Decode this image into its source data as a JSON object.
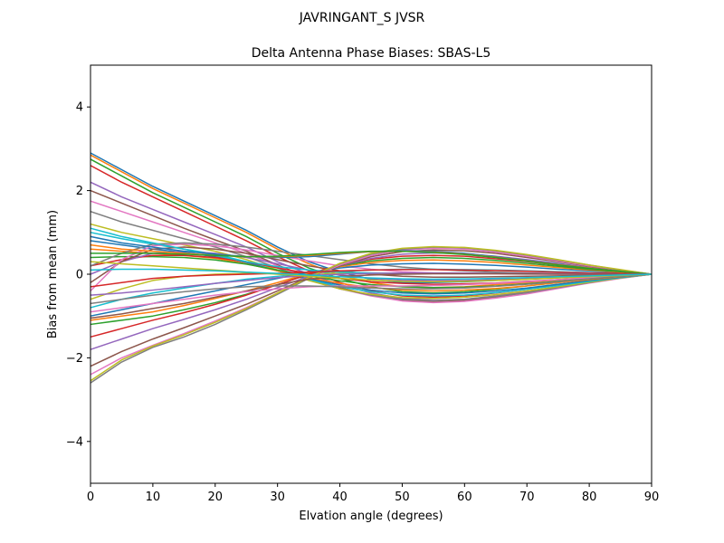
{
  "figure": {
    "suptitle": "JAVRINGANT_S    JVSR"
  },
  "chart_data": {
    "type": "line",
    "title": "Delta Antenna Phase Biases: SBAS-L5",
    "xlabel": "Elvation angle (degrees)",
    "ylabel": "Bias from mean (mm)",
    "xlim": [
      0,
      90
    ],
    "ylim": [
      -5,
      5
    ],
    "xticks": [
      0,
      10,
      20,
      30,
      40,
      50,
      60,
      70,
      80,
      90
    ],
    "yticks": [
      -4,
      -2,
      0,
      2,
      4
    ],
    "xtick_labels": [
      "0",
      "10",
      "20",
      "30",
      "40",
      "50",
      "60",
      "70",
      "80",
      "90"
    ],
    "ytick_labels": [
      "−4",
      "−2",
      "0",
      "2",
      "4"
    ],
    "grid": false,
    "legend": false,
    "x": [
      0,
      5,
      10,
      15,
      20,
      25,
      30,
      35,
      40,
      45,
      50,
      55,
      60,
      65,
      70,
      75,
      80,
      85,
      90
    ],
    "series": [
      {
        "values": [
          2.9,
          2.5,
          2.1,
          1.75,
          1.4,
          1.05,
          0.65,
          0.3,
          0.05,
          -0.12,
          -0.2,
          -0.2,
          -0.18,
          -0.15,
          -0.12,
          -0.08,
          -0.05,
          -0.02,
          0.0
        ]
      },
      {
        "values": [
          2.85,
          2.45,
          2.05,
          1.7,
          1.35,
          1.0,
          0.6,
          0.25,
          -0.02,
          -0.2,
          -0.3,
          -0.32,
          -0.3,
          -0.25,
          -0.2,
          -0.14,
          -0.08,
          -0.03,
          0.0
        ]
      },
      {
        "values": [
          2.75,
          2.35,
          1.95,
          1.6,
          1.25,
          0.9,
          0.5,
          0.15,
          -0.1,
          -0.3,
          -0.42,
          -0.45,
          -0.42,
          -0.36,
          -0.28,
          -0.2,
          -0.12,
          -0.05,
          0.0
        ]
      },
      {
        "values": [
          2.6,
          2.2,
          1.85,
          1.5,
          1.15,
          0.8,
          0.42,
          0.08,
          -0.2,
          -0.4,
          -0.52,
          -0.55,
          -0.52,
          -0.45,
          -0.36,
          -0.26,
          -0.16,
          -0.07,
          0.0
        ]
      },
      {
        "values": [
          2.2,
          1.85,
          1.55,
          1.25,
          0.95,
          0.65,
          0.3,
          0.0,
          -0.25,
          -0.45,
          -0.58,
          -0.62,
          -0.6,
          -0.52,
          -0.42,
          -0.3,
          -0.18,
          -0.08,
          0.0
        ]
      },
      {
        "values": [
          2.0,
          1.7,
          1.4,
          1.1,
          0.82,
          0.55,
          0.22,
          -0.08,
          -0.32,
          -0.5,
          -0.62,
          -0.66,
          -0.63,
          -0.55,
          -0.45,
          -0.32,
          -0.2,
          -0.09,
          0.0
        ]
      },
      {
        "values": [
          1.75,
          1.5,
          1.25,
          1.0,
          0.75,
          0.5,
          0.2,
          -0.1,
          -0.35,
          -0.52,
          -0.64,
          -0.68,
          -0.65,
          -0.57,
          -0.47,
          -0.34,
          -0.21,
          -0.1,
          0.0
        ]
      },
      {
        "values": [
          1.5,
          1.25,
          1.05,
          0.85,
          0.65,
          0.42,
          0.15,
          -0.12,
          -0.35,
          -0.5,
          -0.6,
          -0.63,
          -0.6,
          -0.53,
          -0.44,
          -0.32,
          -0.2,
          -0.09,
          0.0
        ]
      },
      {
        "values": [
          1.2,
          1.0,
          0.85,
          0.7,
          0.55,
          0.35,
          0.1,
          -0.15,
          -0.35,
          -0.48,
          -0.56,
          -0.58,
          -0.55,
          -0.49,
          -0.4,
          -0.3,
          -0.19,
          -0.09,
          0.0
        ]
      },
      {
        "values": [
          1.0,
          0.85,
          0.72,
          0.6,
          0.48,
          0.3,
          0.08,
          -0.12,
          -0.3,
          -0.42,
          -0.5,
          -0.52,
          -0.5,
          -0.44,
          -0.36,
          -0.27,
          -0.17,
          -0.08,
          0.0
        ]
      },
      {
        "values": [
          0.8,
          0.7,
          0.6,
          0.52,
          0.42,
          0.28,
          0.08,
          -0.1,
          -0.26,
          -0.38,
          -0.45,
          -0.47,
          -0.45,
          -0.4,
          -0.33,
          -0.24,
          -0.15,
          -0.07,
          0.0
        ]
      },
      {
        "values": [
          0.6,
          0.55,
          0.5,
          0.45,
          0.38,
          0.25,
          0.08,
          -0.08,
          -0.22,
          -0.32,
          -0.38,
          -0.4,
          -0.38,
          -0.34,
          -0.28,
          -0.2,
          -0.13,
          -0.06,
          0.0
        ]
      },
      {
        "values": [
          0.4,
          0.42,
          0.42,
          0.4,
          0.34,
          0.24,
          0.1,
          -0.04,
          -0.16,
          -0.25,
          -0.3,
          -0.32,
          -0.31,
          -0.28,
          -0.23,
          -0.17,
          -0.11,
          -0.05,
          0.0
        ]
      },
      {
        "values": [
          0.2,
          0.35,
          0.45,
          0.45,
          0.4,
          0.3,
          0.15,
          0.02,
          -0.1,
          -0.18,
          -0.22,
          -0.24,
          -0.23,
          -0.21,
          -0.17,
          -0.13,
          -0.08,
          -0.04,
          0.0
        ]
      },
      {
        "values": [
          0.0,
          0.3,
          0.5,
          0.55,
          0.5,
          0.4,
          0.25,
          0.1,
          -0.02,
          -0.1,
          -0.14,
          -0.15,
          -0.15,
          -0.13,
          -0.11,
          -0.08,
          -0.05,
          -0.02,
          0.0
        ]
      },
      {
        "values": [
          -0.2,
          0.3,
          0.6,
          0.65,
          0.6,
          0.5,
          0.35,
          0.2,
          0.08,
          0.0,
          -0.05,
          -0.07,
          -0.07,
          -0.06,
          -0.05,
          -0.04,
          -0.02,
          -0.01,
          0.0
        ]
      },
      {
        "values": [
          -0.4,
          0.35,
          0.68,
          0.72,
          0.68,
          0.58,
          0.45,
          0.32,
          0.2,
          0.12,
          0.06,
          0.03,
          0.02,
          0.01,
          0.0,
          0.0,
          0.0,
          0.0,
          0.0
        ]
      },
      {
        "values": [
          0.2,
          0.5,
          0.72,
          0.75,
          0.72,
          0.65,
          0.55,
          0.45,
          0.35,
          0.25,
          0.17,
          0.12,
          0.08,
          0.05,
          0.03,
          0.02,
          0.01,
          0.0,
          0.0
        ]
      },
      {
        "values": [
          -0.6,
          -0.35,
          -0.15,
          -0.05,
          0.0,
          0.02,
          0.02,
          0.02,
          0.02,
          0.02,
          0.02,
          0.02,
          0.02,
          0.02,
          0.01,
          0.01,
          0.01,
          0.0,
          0.0
        ]
      },
      {
        "values": [
          -0.8,
          -0.6,
          -0.45,
          -0.33,
          -0.22,
          -0.12,
          -0.05,
          0.02,
          0.07,
          0.1,
          0.12,
          0.12,
          0.11,
          0.1,
          0.08,
          0.06,
          0.04,
          0.02,
          0.0
        ]
      },
      {
        "values": [
          -1.0,
          -0.85,
          -0.7,
          -0.55,
          -0.4,
          -0.25,
          -0.1,
          0.05,
          0.15,
          0.22,
          0.25,
          0.26,
          0.24,
          0.21,
          0.17,
          0.12,
          0.08,
          0.04,
          0.0
        ]
      },
      {
        "values": [
          -1.1,
          -1.0,
          -0.9,
          -0.75,
          -0.58,
          -0.4,
          -0.2,
          0.02,
          0.18,
          0.28,
          0.33,
          0.34,
          0.32,
          0.28,
          0.22,
          0.16,
          0.1,
          0.05,
          0.0
        ]
      },
      {
        "values": [
          -1.2,
          -1.1,
          -1.0,
          -0.85,
          -0.68,
          -0.48,
          -0.25,
          0.0,
          0.2,
          0.32,
          0.38,
          0.4,
          0.38,
          0.33,
          0.26,
          0.19,
          0.12,
          0.06,
          0.0
        ]
      },
      {
        "values": [
          -1.5,
          -1.3,
          -1.1,
          -0.92,
          -0.72,
          -0.5,
          -0.25,
          0.0,
          0.22,
          0.36,
          0.43,
          0.45,
          0.43,
          0.37,
          0.3,
          0.22,
          0.14,
          0.07,
          0.0
        ]
      },
      {
        "values": [
          -1.8,
          -1.55,
          -1.3,
          -1.08,
          -0.85,
          -0.6,
          -0.32,
          -0.05,
          0.2,
          0.38,
          0.48,
          0.51,
          0.49,
          0.43,
          0.35,
          0.26,
          0.16,
          0.08,
          0.0
        ]
      },
      {
        "values": [
          -2.2,
          -1.85,
          -1.55,
          -1.28,
          -1.0,
          -0.72,
          -0.4,
          -0.08,
          0.2,
          0.42,
          0.54,
          0.58,
          0.56,
          0.5,
          0.4,
          0.3,
          0.19,
          0.09,
          0.0
        ]
      },
      {
        "values": [
          -2.4,
          -2.0,
          -1.7,
          -1.42,
          -1.12,
          -0.8,
          -0.45,
          -0.1,
          0.22,
          0.45,
          0.58,
          0.62,
          0.6,
          0.53,
          0.43,
          0.32,
          0.2,
          0.1,
          0.0
        ]
      },
      {
        "values": [
          -2.6,
          -2.1,
          -1.75,
          -1.5,
          -1.2,
          -0.85,
          -0.48,
          -0.1,
          0.25,
          0.48,
          0.6,
          0.65,
          0.63,
          0.56,
          0.46,
          0.34,
          0.22,
          0.1,
          0.0
        ]
      },
      {
        "values": [
          -2.55,
          -2.05,
          -1.72,
          -1.45,
          -1.15,
          -0.82,
          -0.45,
          -0.08,
          0.26,
          0.5,
          0.62,
          0.66,
          0.64,
          0.57,
          0.47,
          0.35,
          0.22,
          0.11,
          0.0
        ]
      },
      {
        "values": [
          1.1,
          0.9,
          0.75,
          0.6,
          0.45,
          0.3,
          0.18,
          0.1,
          0.05,
          0.03,
          0.02,
          0.02,
          0.02,
          0.02,
          0.01,
          0.01,
          0.01,
          0.0,
          0.0
        ]
      },
      {
        "values": [
          0.9,
          0.75,
          0.65,
          0.55,
          0.48,
          0.42,
          0.4,
          0.42,
          0.48,
          0.54,
          0.56,
          0.55,
          0.5,
          0.42,
          0.33,
          0.24,
          0.15,
          0.07,
          0.0
        ]
      },
      {
        "values": [
          0.7,
          0.6,
          0.55,
          0.5,
          0.45,
          0.42,
          0.42,
          0.45,
          0.5,
          0.54,
          0.55,
          0.53,
          0.48,
          0.41,
          0.32,
          0.23,
          0.15,
          0.07,
          0.0
        ]
      },
      {
        "values": [
          0.5,
          0.5,
          0.5,
          0.48,
          0.45,
          0.42,
          0.43,
          0.47,
          0.52,
          0.55,
          0.55,
          0.52,
          0.47,
          0.4,
          0.31,
          0.22,
          0.14,
          0.07,
          0.0
        ]
      },
      {
        "values": [
          -0.3,
          -0.2,
          -0.1,
          -0.05,
          -0.02,
          0.0,
          0.02,
          0.05,
          0.08,
          0.1,
          0.11,
          0.11,
          0.1,
          0.09,
          0.07,
          0.05,
          0.03,
          0.02,
          0.0
        ]
      },
      {
        "values": [
          -0.5,
          -0.45,
          -0.38,
          -0.3,
          -0.22,
          -0.15,
          -0.08,
          -0.03,
          0.0,
          0.02,
          0.03,
          0.03,
          0.03,
          0.02,
          0.02,
          0.01,
          0.01,
          0.0,
          0.0
        ]
      },
      {
        "values": [
          -1.05,
          -0.95,
          -0.82,
          -0.7,
          -0.55,
          -0.4,
          -0.25,
          -0.12,
          -0.05,
          -0.02,
          0.0,
          0.01,
          0.01,
          0.01,
          0.01,
          0.0,
          0.0,
          0.0,
          0.0
        ]
      },
      {
        "values": [
          -0.9,
          -0.8,
          -0.7,
          -0.6,
          -0.5,
          -0.42,
          -0.35,
          -0.3,
          -0.28,
          -0.28,
          -0.28,
          -0.27,
          -0.25,
          -0.22,
          -0.18,
          -0.13,
          -0.08,
          -0.04,
          0.0
        ]
      },
      {
        "values": [
          -0.7,
          -0.6,
          -0.5,
          -0.42,
          -0.35,
          -0.3,
          -0.28,
          -0.28,
          -0.3,
          -0.33,
          -0.35,
          -0.35,
          -0.33,
          -0.29,
          -0.24,
          -0.18,
          -0.11,
          -0.05,
          0.0
        ]
      },
      {
        "values": [
          0.3,
          0.25,
          0.2,
          0.15,
          0.1,
          0.05,
          0.0,
          -0.05,
          -0.1,
          -0.14,
          -0.17,
          -0.18,
          -0.17,
          -0.15,
          -0.12,
          -0.09,
          -0.06,
          -0.03,
          0.0
        ]
      },
      {
        "values": [
          0.1,
          0.12,
          0.12,
          0.1,
          0.08,
          0.05,
          0.02,
          -0.02,
          -0.06,
          -0.09,
          -0.11,
          -0.12,
          -0.11,
          -0.1,
          -0.08,
          -0.06,
          -0.04,
          -0.02,
          0.0
        ]
      }
    ]
  }
}
